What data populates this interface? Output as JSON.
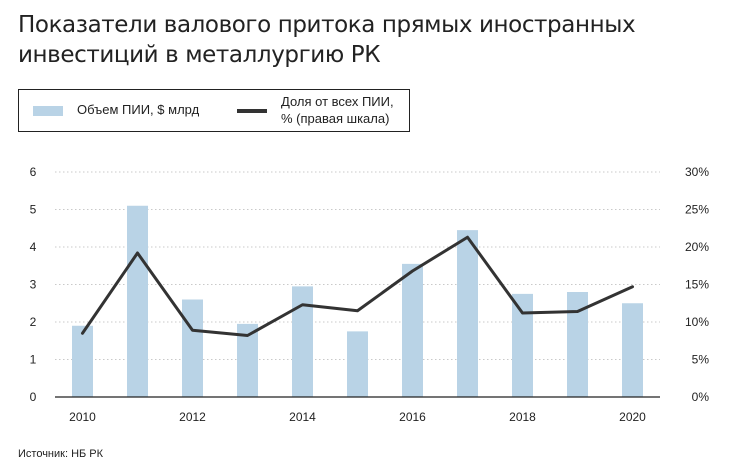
{
  "title": "Показатели валового притока прямых иностранных инвестиций в металлургию РК",
  "legend": {
    "bars_label": "Объем ПИИ, $ млрд",
    "line_label": "Доля от всех ПИИ, % (правая шкала)"
  },
  "source": "Источник: НБ РК",
  "colors": {
    "bars": "#b9d3e6",
    "line": "#333333"
  },
  "chart_data": {
    "type": "bar",
    "categories": [
      "2010",
      "2011",
      "2012",
      "2013",
      "2014",
      "2015",
      "2016",
      "2017",
      "2018",
      "2019",
      "2020"
    ],
    "x_tick_labels": [
      "2010",
      "",
      "2012",
      "",
      "2014",
      "",
      "2016",
      "",
      "2018",
      "",
      "2020"
    ],
    "series": [
      {
        "name": "Объем ПИИ, $ млрд",
        "type": "bar",
        "axis": "left",
        "values": [
          1.9,
          5.1,
          2.6,
          1.95,
          2.95,
          1.75,
          3.55,
          4.45,
          2.75,
          2.8,
          2.5
        ]
      },
      {
        "name": "Доля от всех ПИИ, % (правая шкала)",
        "type": "line",
        "axis": "right",
        "values": [
          8.5,
          19.2,
          8.9,
          8.2,
          12.3,
          11.5,
          16.8,
          21.3,
          11.2,
          11.4,
          14.7
        ]
      }
    ],
    "y_left": {
      "lim": [
        0,
        6
      ],
      "ticks": [
        "0",
        "1",
        "2",
        "3",
        "4",
        "5",
        "6"
      ]
    },
    "y_right": {
      "lim": [
        0,
        30
      ],
      "ticks": [
        "0%",
        "5%",
        "10%",
        "15%",
        "20%",
        "25%",
        "30%"
      ]
    },
    "grid": true
  }
}
